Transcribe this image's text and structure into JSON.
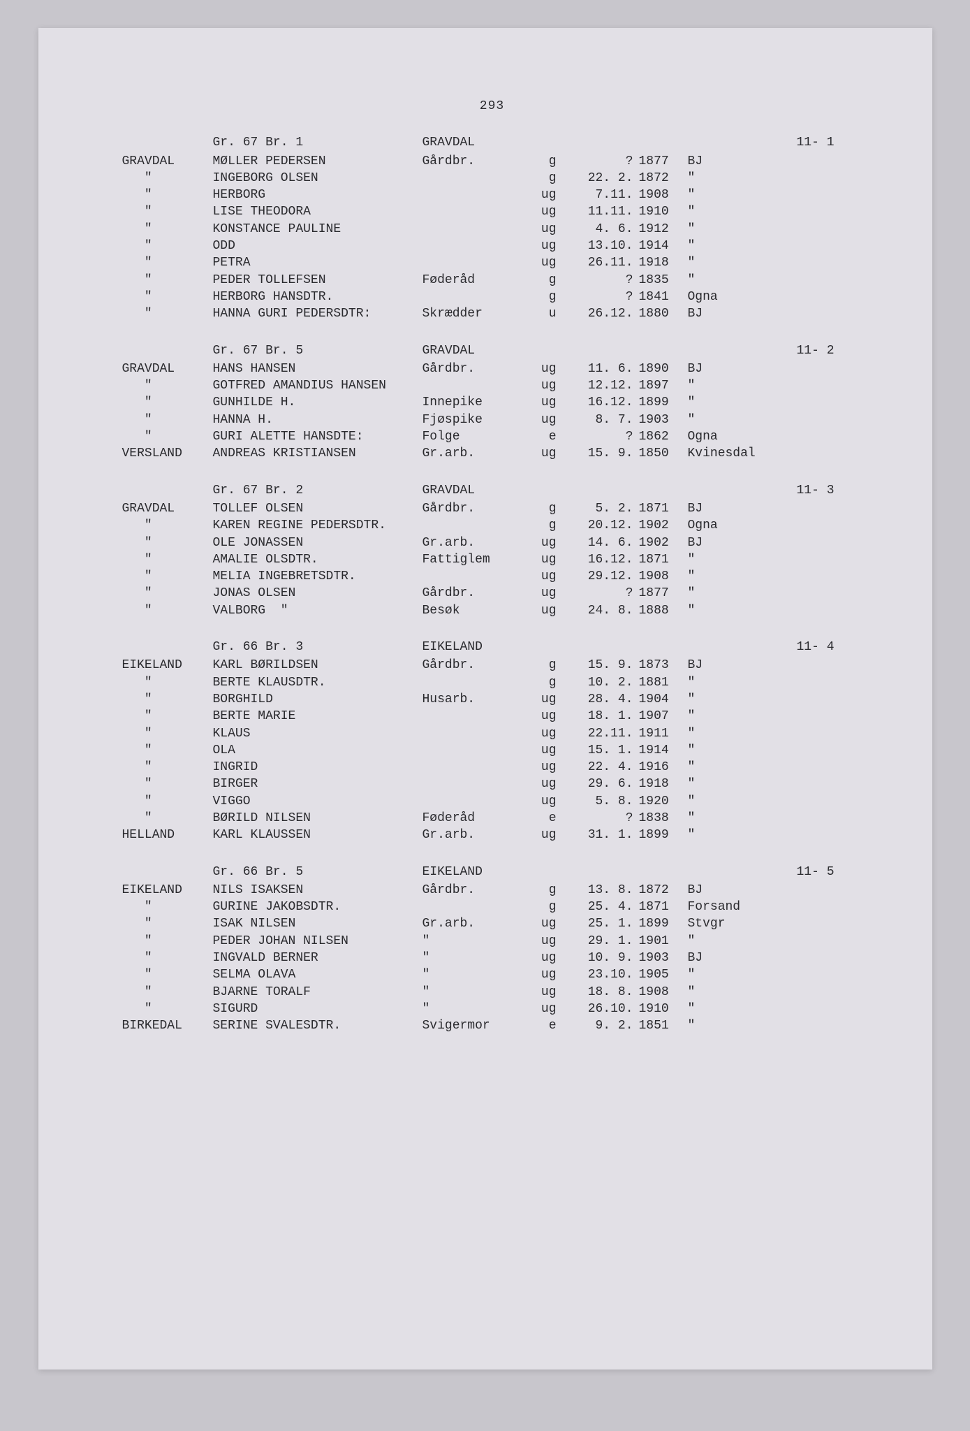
{
  "page_number": "293",
  "sections": [
    {
      "header": {
        "gr": "Gr. 67 Br. 1",
        "location": "GRAVDAL",
        "code": "11- 1"
      },
      "rows": [
        {
          "place": "GRAVDAL",
          "name": "MØLLER PEDERSEN",
          "occ": "Gårdbr.",
          "stat": "g",
          "date": "?",
          "year": "1877",
          "origin": "BJ"
        },
        {
          "place": "\"",
          "name": "INGEBORG OLSEN",
          "occ": "",
          "stat": "g",
          "date": "22. 2.",
          "year": "1872",
          "origin": "\""
        },
        {
          "place": "\"",
          "name": "HERBORG",
          "occ": "",
          "stat": "ug",
          "date": "7.11.",
          "year": "1908",
          "origin": "\""
        },
        {
          "place": "\"",
          "name": "LISE THEODORA",
          "occ": "",
          "stat": "ug",
          "date": "11.11.",
          "year": "1910",
          "origin": "\""
        },
        {
          "place": "\"",
          "name": "KONSTANCE PAULINE",
          "occ": "",
          "stat": "ug",
          "date": "4. 6.",
          "year": "1912",
          "origin": "\""
        },
        {
          "place": "\"",
          "name": "ODD",
          "occ": "",
          "stat": "ug",
          "date": "13.10.",
          "year": "1914",
          "origin": "\""
        },
        {
          "place": "\"",
          "name": "PETRA",
          "occ": "",
          "stat": "ug",
          "date": "26.11.",
          "year": "1918",
          "origin": "\""
        },
        {
          "place": "\"",
          "name": "PEDER TOLLEFSEN",
          "occ": "Føderåd",
          "stat": "g",
          "date": "?",
          "year": "1835",
          "origin": "\""
        },
        {
          "place": "\"",
          "name": "HERBORG HANSDTR.",
          "occ": "",
          "stat": "g",
          "date": "?",
          "year": "1841",
          "origin": "Ogna"
        },
        {
          "place": "\"",
          "name": "HANNA GURI PEDERSDTR:",
          "occ": "Skrædder",
          "stat": "u",
          "date": "26.12.",
          "year": "1880",
          "origin": "BJ"
        }
      ]
    },
    {
      "header": {
        "gr": "Gr. 67 Br. 5",
        "location": "GRAVDAL",
        "code": "11- 2"
      },
      "rows": [
        {
          "place": "GRAVDAL",
          "name": "HANS HANSEN",
          "occ": "Gårdbr.",
          "stat": "ug",
          "date": "11. 6.",
          "year": "1890",
          "origin": "BJ"
        },
        {
          "place": "\"",
          "name": "GOTFRED AMANDIUS HANSEN",
          "occ": "",
          "stat": "ug",
          "date": "12.12.",
          "year": "1897",
          "origin": "\""
        },
        {
          "place": "\"",
          "name": "GUNHILDE H.",
          "occ": "Innepike",
          "stat": "ug",
          "date": "16.12.",
          "year": "1899",
          "origin": "\""
        },
        {
          "place": "\"",
          "name": "HANNA H.",
          "occ": "Fjøspike",
          "stat": "ug",
          "date": "8. 7.",
          "year": "1903",
          "origin": "\""
        },
        {
          "place": "\"",
          "name": "GURI ALETTE HANSDTE:",
          "occ": "Folge",
          "stat": "e",
          "date": "?",
          "year": "1862",
          "origin": "Ogna"
        },
        {
          "place": "VERSLAND",
          "name": "ANDREAS KRISTIANSEN",
          "occ": "Gr.arb.",
          "stat": "ug",
          "date": "15. 9.",
          "year": "1850",
          "origin": "Kvinesdal"
        }
      ]
    },
    {
      "header": {
        "gr": "Gr. 67 Br. 2",
        "location": "GRAVDAL",
        "code": "11- 3"
      },
      "rows": [
        {
          "place": "GRAVDAL",
          "name": "TOLLEF OLSEN",
          "occ": "Gårdbr.",
          "stat": "g",
          "date": "5. 2.",
          "year": "1871",
          "origin": "BJ"
        },
        {
          "place": "\"",
          "name": "KAREN REGINE PEDERSDTR.",
          "occ": "",
          "stat": "g",
          "date": "20.12.",
          "year": "1902",
          "origin": "Ogna"
        },
        {
          "place": "\"",
          "name": "OLE JONASSEN",
          "occ": "Gr.arb.",
          "stat": "ug",
          "date": "14. 6.",
          "year": "1902",
          "origin": "BJ"
        },
        {
          "place": "\"",
          "name": "AMALIE OLSDTR.",
          "occ": "Fattiglem",
          "stat": "ug",
          "date": "16.12.",
          "year": "1871",
          "origin": "\""
        },
        {
          "place": "\"",
          "name": "MELIA INGEBRETSDTR.",
          "occ": "",
          "stat": "ug",
          "date": "29.12.",
          "year": "1908",
          "origin": "\""
        },
        {
          "place": "\"",
          "name": "JONAS OLSEN",
          "occ": "Gårdbr.",
          "stat": "ug",
          "date": "?",
          "year": "1877",
          "origin": "\""
        },
        {
          "place": "\"",
          "name": "VALBORG  \"",
          "occ": "Besøk",
          "stat": "ug",
          "date": "24. 8.",
          "year": "1888",
          "origin": "\""
        }
      ]
    },
    {
      "header": {
        "gr": "Gr. 66 Br. 3",
        "location": "EIKELAND",
        "code": "11- 4"
      },
      "rows": [
        {
          "place": "EIKELAND",
          "name": "KARL BØRILDSEN",
          "occ": "Gårdbr.",
          "stat": "g",
          "date": "15. 9.",
          "year": "1873",
          "origin": "BJ"
        },
        {
          "place": "\"",
          "name": "BERTE KLAUSDTR.",
          "occ": "",
          "stat": "g",
          "date": "10. 2.",
          "year": "1881",
          "origin": "\""
        },
        {
          "place": "\"",
          "name": "BORGHILD",
          "occ": "Husarb.",
          "stat": "ug",
          "date": "28. 4.",
          "year": "1904",
          "origin": "\""
        },
        {
          "place": "\"",
          "name": "BERTE MARIE",
          "occ": "",
          "stat": "ug",
          "date": "18. 1.",
          "year": "1907",
          "origin": "\""
        },
        {
          "place": "\"",
          "name": "KLAUS",
          "occ": "",
          "stat": "ug",
          "date": "22.11.",
          "year": "1911",
          "origin": "\""
        },
        {
          "place": "\"",
          "name": "OLA",
          "occ": "",
          "stat": "ug",
          "date": "15. 1.",
          "year": "1914",
          "origin": "\""
        },
        {
          "place": "\"",
          "name": "INGRID",
          "occ": "",
          "stat": "ug",
          "date": "22. 4.",
          "year": "1916",
          "origin": "\""
        },
        {
          "place": "\"",
          "name": "BIRGER",
          "occ": "",
          "stat": "ug",
          "date": "29. 6.",
          "year": "1918",
          "origin": "\""
        },
        {
          "place": "\"",
          "name": "VIGGO",
          "occ": "",
          "stat": "ug",
          "date": "5. 8.",
          "year": "1920",
          "origin": "\""
        },
        {
          "place": "\"",
          "name": "BØRILD NILSEN",
          "occ": "Føderåd",
          "stat": "e",
          "date": "?",
          "year": "1838",
          "origin": "\""
        },
        {
          "place": "HELLAND",
          "name": "KARL KLAUSSEN",
          "occ": "Gr.arb.",
          "stat": "ug",
          "date": "31. 1.",
          "year": "1899",
          "origin": "\""
        }
      ]
    },
    {
      "header": {
        "gr": "Gr. 66 Br. 5",
        "location": "EIKELAND",
        "code": "11- 5"
      },
      "rows": [
        {
          "place": "EIKELAND",
          "name": "NILS ISAKSEN",
          "occ": "Gårdbr.",
          "stat": "g",
          "date": "13. 8.",
          "year": "1872",
          "origin": "BJ"
        },
        {
          "place": "\"",
          "name": "GURINE JAKOBSDTR.",
          "occ": "",
          "stat": "g",
          "date": "25. 4.",
          "year": "1871",
          "origin": "Forsand"
        },
        {
          "place": "\"",
          "name": "ISAK NILSEN",
          "occ": "Gr.arb.",
          "stat": "ug",
          "date": "25. 1.",
          "year": "1899",
          "origin": "Stvgr"
        },
        {
          "place": "\"",
          "name": "PEDER JOHAN NILSEN",
          "occ": "\"",
          "stat": "ug",
          "date": "29. 1.",
          "year": "1901",
          "origin": "\""
        },
        {
          "place": "\"",
          "name": "INGVALD BERNER",
          "occ": "\"",
          "stat": "ug",
          "date": "10. 9.",
          "year": "1903",
          "origin": "BJ"
        },
        {
          "place": "\"",
          "name": "SELMA OLAVA",
          "occ": "\"",
          "stat": "ug",
          "date": "23.10.",
          "year": "1905",
          "origin": "\""
        },
        {
          "place": "\"",
          "name": "BJARNE TORALF",
          "occ": "\"",
          "stat": "ug",
          "date": "18. 8.",
          "year": "1908",
          "origin": "\""
        },
        {
          "place": "\"",
          "name": "SIGURD",
          "occ": "\"",
          "stat": "ug",
          "date": "26.10.",
          "year": "1910",
          "origin": "\""
        },
        {
          "place": "BIRKEDAL",
          "name": "SERINE SVALESDTR.",
          "occ": "Svigermor",
          "stat": "e",
          "date": "9. 2.",
          "year": "1851",
          "origin": "\""
        }
      ]
    }
  ]
}
